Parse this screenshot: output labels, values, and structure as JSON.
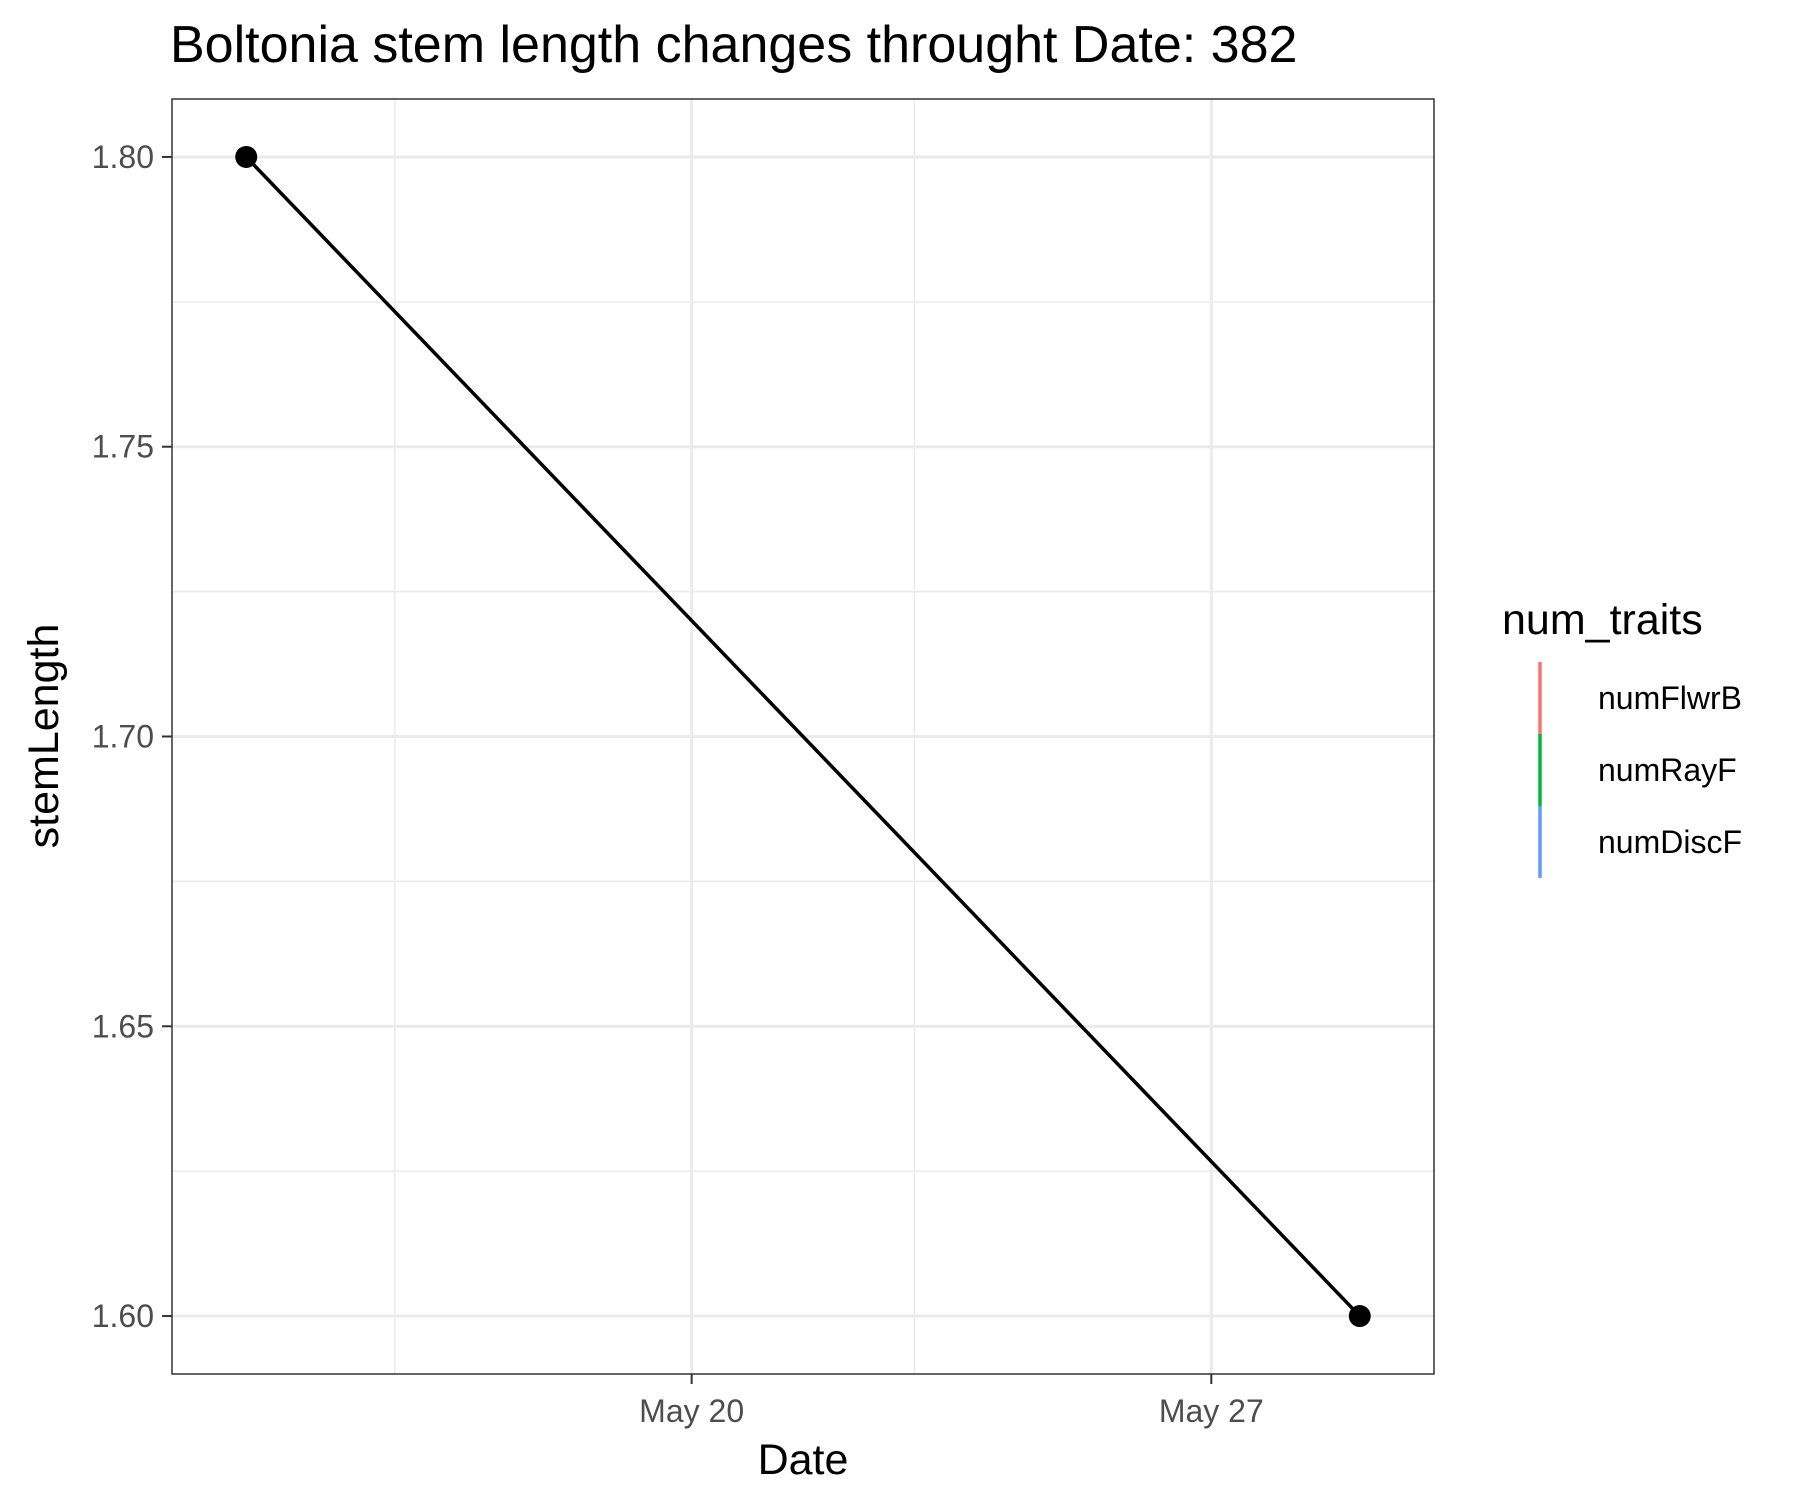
{
  "chart_data": {
    "type": "line",
    "title": "Boltonia stem length changes throught Date:  382",
    "xlabel": "Date",
    "ylabel": "stemLength",
    "x_axis": {
      "scale": "date",
      "range": [
        "2024-05-13",
        "2024-05-30"
      ],
      "ticks": [
        {
          "value": "2024-05-20",
          "label": "May 20"
        },
        {
          "value": "2024-05-27",
          "label": "May 27"
        }
      ],
      "minor_ticks": [
        "2024-05-16",
        "2024-05-23"
      ]
    },
    "y_axis": {
      "range": [
        1.59,
        1.81
      ],
      "ticks": [
        {
          "value": 1.6,
          "label": "1.60"
        },
        {
          "value": 1.65,
          "label": "1.65"
        },
        {
          "value": 1.7,
          "label": "1.70"
        },
        {
          "value": 1.75,
          "label": "1.75"
        },
        {
          "value": 1.8,
          "label": "1.80"
        }
      ],
      "minor_ticks": [
        1.625,
        1.675,
        1.725,
        1.775
      ]
    },
    "series": [
      {
        "color": "#000000",
        "points": [
          {
            "x": "2024-05-14",
            "y": 1.8
          },
          {
            "x": "2024-05-29",
            "y": 1.6
          }
        ]
      }
    ],
    "grid": true,
    "legend": {
      "title": "num_traits",
      "placement": "right",
      "entries": [
        {
          "label": "numFlwrB",
          "color": "#F8766D"
        },
        {
          "label": "numRayF",
          "color": "#00BA38"
        },
        {
          "label": "numDiscF",
          "color": "#619CFF"
        }
      ]
    }
  }
}
